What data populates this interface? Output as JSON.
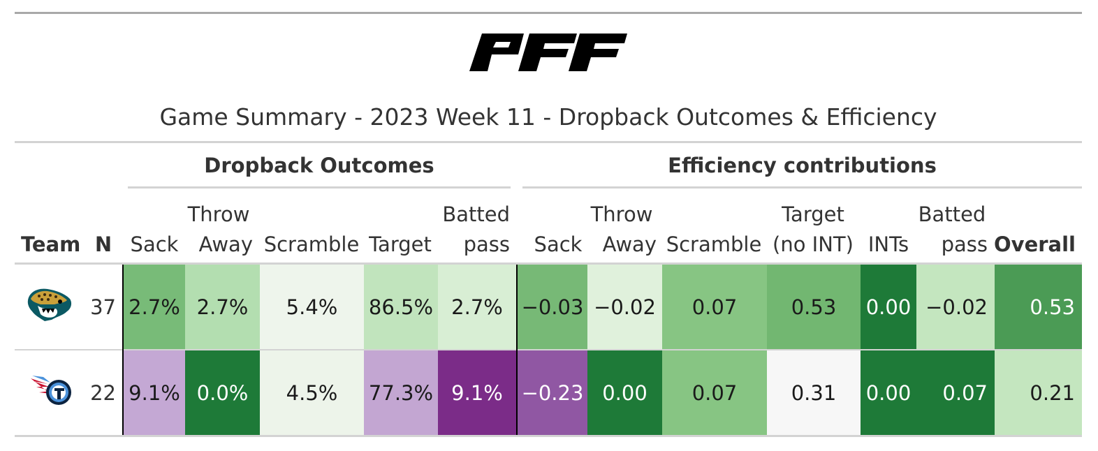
{
  "title": "Game Summary - 2023 Week 11 - Dropback Outcomes & Efficiency",
  "brand": {
    "logo_text": "PFF"
  },
  "spanners": {
    "outcomes": "Dropback Outcomes",
    "efficiency": "Efficiency contributions"
  },
  "columns": {
    "team": "Team",
    "n": "N",
    "outcomes": {
      "sack": [
        "Sack"
      ],
      "throw_away": [
        "Throw",
        "Away"
      ],
      "scramble": [
        "Scramble"
      ],
      "target": [
        "Target"
      ],
      "batted_pass": [
        "Batted",
        "pass"
      ]
    },
    "efficiency": {
      "sack": [
        "Sack"
      ],
      "throw_away": [
        "Throw",
        "Away"
      ],
      "scramble": [
        "Scramble"
      ],
      "target_no_int": [
        "Target",
        "(no INT)"
      ],
      "ints": [
        "INTs"
      ],
      "batted_pass": [
        "Batted",
        "pass"
      ],
      "overall": [
        "Overall"
      ]
    }
  },
  "rows": [
    {
      "team_icon": "jaguars-logo-icon",
      "n": "37",
      "outcomes": [
        "2.7%",
        "2.7%",
        "5.4%",
        "86.5%",
        "2.7%"
      ],
      "efficiency": [
        "−0.03",
        "−0.02",
        "0.07",
        "0.53",
        "0.00",
        "−0.02",
        "0.53"
      ],
      "outcome_colors": [
        "#78bb78",
        "#b3deb0",
        "#eef5ec",
        "#c1e4bd",
        "#d8eed4"
      ],
      "outcome_text_colors": [
        "#1a1a1a",
        "#1a1a1a",
        "#1a1a1a",
        "#1a1a1a",
        "#1a1a1a"
      ],
      "efficiency_colors": [
        "#77b976",
        "#e0f1dc",
        "#87c583",
        "#72b771",
        "#1e7a38",
        "#c4e6bf",
        "#4b9b55"
      ],
      "efficiency_text_colors": [
        "#1a1a1a",
        "#1a1a1a",
        "#1a1a1a",
        "#1a1a1a",
        "#ffffff",
        "#1a1a1a",
        "#ffffff"
      ]
    },
    {
      "team_icon": "titans-logo-icon",
      "n": "22",
      "outcomes": [
        "9.1%",
        "0.0%",
        "4.5%",
        "77.3%",
        "9.1%"
      ],
      "efficiency": [
        "−0.23",
        "0.00",
        "0.07",
        "0.31",
        "0.00",
        "0.07",
        "0.21"
      ],
      "outcome_colors": [
        "#c4a8d4",
        "#1e7a38",
        "#edf4ea",
        "#c3a6d2",
        "#7b2c88"
      ],
      "outcome_text_colors": [
        "#1a1a1a",
        "#ffffff",
        "#1a1a1a",
        "#1a1a1a",
        "#ffffff"
      ],
      "efficiency_colors": [
        "#9057a3",
        "#1e7a38",
        "#87c583",
        "#f7f7f7",
        "#1e7a38",
        "#1e7a38",
        "#c4e6bf"
      ],
      "efficiency_text_colors": [
        "#ffffff",
        "#ffffff",
        "#1a1a1a",
        "#1a1a1a",
        "#ffffff",
        "#ffffff",
        "#1a1a1a"
      ]
    }
  ]
}
